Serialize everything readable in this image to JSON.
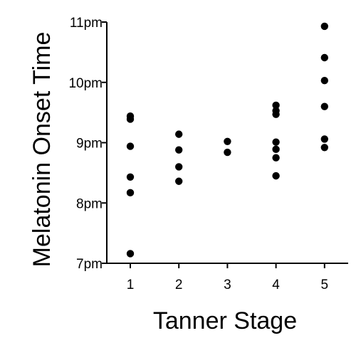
{
  "chart_data": {
    "type": "scatter",
    "title": "",
    "xlabel": "Tanner Stage",
    "ylabel": "Melatonin Onset Time",
    "x_ticks": [
      1,
      2,
      3,
      4,
      5
    ],
    "x_tick_labels": [
      "1",
      "2",
      "3",
      "4",
      "5"
    ],
    "xlim": [
      0.5,
      5.5
    ],
    "y_ticks": [
      19,
      20,
      21,
      22,
      23
    ],
    "y_tick_labels": [
      "7pm",
      "8pm",
      "9pm",
      "10pm",
      "11pm"
    ],
    "y_unit": "hour of day (24h clock)",
    "ylim": [
      19,
      23
    ],
    "grid": false,
    "legend": "none",
    "marker_color": "#000000",
    "series": [
      {
        "points": [
          {
            "x": 1,
            "y": 21.44
          },
          {
            "x": 1,
            "y": 21.39
          },
          {
            "x": 1,
            "y": 20.94
          },
          {
            "x": 1,
            "y": 20.43
          },
          {
            "x": 1,
            "y": 20.17
          },
          {
            "x": 1,
            "y": 19.16
          },
          {
            "x": 2,
            "y": 21.14
          },
          {
            "x": 2,
            "y": 20.88
          },
          {
            "x": 2,
            "y": 20.6
          },
          {
            "x": 2,
            "y": 20.36
          },
          {
            "x": 3,
            "y": 21.02
          },
          {
            "x": 3,
            "y": 20.84
          },
          {
            "x": 4,
            "y": 21.62
          },
          {
            "x": 4,
            "y": 21.53
          },
          {
            "x": 4,
            "y": 21.47
          },
          {
            "x": 4,
            "y": 21.01
          },
          {
            "x": 4,
            "y": 20.89
          },
          {
            "x": 4,
            "y": 20.75
          },
          {
            "x": 4,
            "y": 20.45
          },
          {
            "x": 5,
            "y": 22.93
          },
          {
            "x": 5,
            "y": 22.41
          },
          {
            "x": 5,
            "y": 22.03
          },
          {
            "x": 5,
            "y": 21.6
          },
          {
            "x": 5,
            "y": 21.06
          },
          {
            "x": 5,
            "y": 20.92
          }
        ]
      }
    ]
  }
}
